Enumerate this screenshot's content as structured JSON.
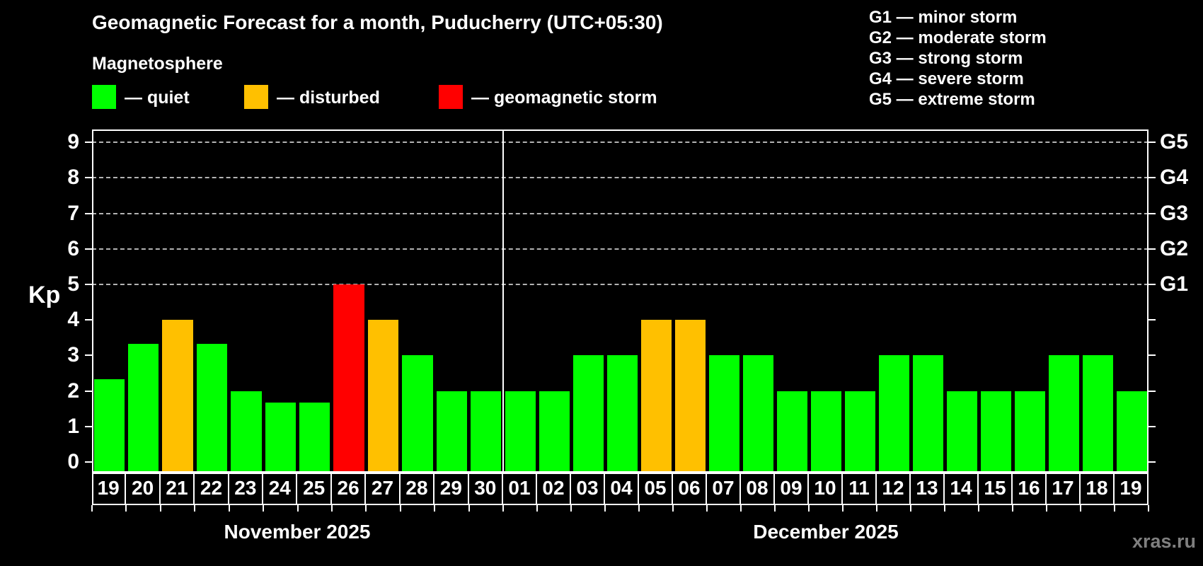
{
  "header": {
    "title": "Geomagnetic Forecast for a month, Puducherry (UTC+05:30)",
    "subtitle": "Magnetosphere"
  },
  "legend": [
    {
      "key": "quiet",
      "label": "— quiet"
    },
    {
      "key": "disturbed",
      "label": "— disturbed"
    },
    {
      "key": "storm",
      "label": "— geomagnetic storm"
    }
  ],
  "g_legend": [
    "G1 — minor storm",
    "G2 — moderate storm",
    "G3 — strong storm",
    "G4 — severe storm",
    "G5 — extreme storm"
  ],
  "colors": {
    "quiet": "#00ff00",
    "disturbed": "#ffc000",
    "storm": "#ff0000",
    "background": "#000000",
    "text": "#ffffff",
    "grid": "#b3b3b3",
    "axis": "#ffffff",
    "watermark": "#7f7f7f"
  },
  "watermark": "xras.ru",
  "chart_data": {
    "type": "bar",
    "title": "Geomagnetic Forecast for a month, Puducherry (UTC+05:30)",
    "xlabel": "",
    "ylabel": "Kp",
    "ylim": [
      0,
      9.4
    ],
    "yticks": [
      0,
      1,
      2,
      3,
      4,
      5,
      6,
      7,
      8,
      9
    ],
    "grid_values": [
      5,
      6,
      7,
      8,
      9
    ],
    "right_axis": [
      {
        "value": 5,
        "label": "G1"
      },
      {
        "value": 6,
        "label": "G2"
      },
      {
        "value": 7,
        "label": "G3"
      },
      {
        "value": 8,
        "label": "G4"
      },
      {
        "value": 9,
        "label": "G5"
      }
    ],
    "thresholds": {
      "disturbed": 4,
      "storm": 5
    },
    "legend_position": "top",
    "grid": "dashed horizontal at G levels only",
    "months": [
      {
        "label": "November 2025",
        "days": [
          "19",
          "20",
          "21",
          "22",
          "23",
          "24",
          "25",
          "26",
          "27",
          "28",
          "29",
          "30"
        ],
        "values": [
          2.33,
          3.33,
          4,
          3.33,
          2,
          1.67,
          1.67,
          5,
          4,
          3,
          2,
          2
        ]
      },
      {
        "label": "December 2025",
        "days": [
          "01",
          "02",
          "03",
          "04",
          "05",
          "06",
          "07",
          "08",
          "09",
          "10",
          "11",
          "12",
          "13",
          "14",
          "15",
          "16",
          "17",
          "18",
          "19"
        ],
        "values": [
          2,
          2,
          3,
          3,
          4,
          4,
          3,
          3,
          2,
          2,
          2,
          3,
          3,
          2,
          2,
          2,
          3,
          3,
          2
        ]
      }
    ]
  }
}
